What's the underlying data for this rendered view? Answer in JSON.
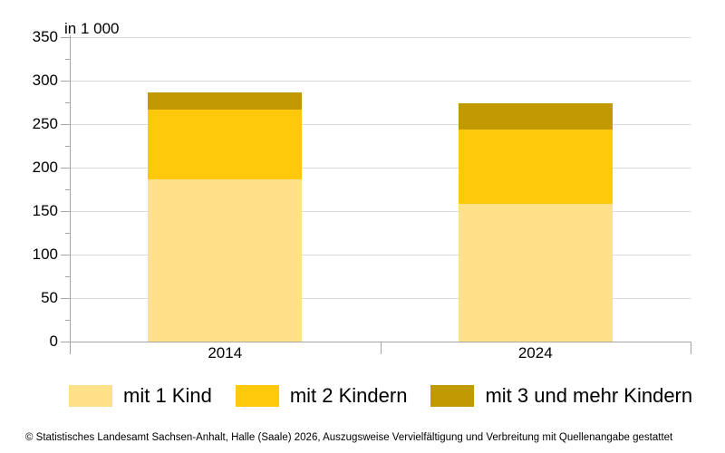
{
  "chart_data": {
    "type": "bar",
    "stacked": true,
    "unit_label": "in 1 000",
    "categories": [
      "2014",
      "2024"
    ],
    "series": [
      {
        "name": "mit 1 Kind",
        "color": "#ffe18a",
        "values": [
          186,
          158
        ]
      },
      {
        "name": "mit 2 Kindern",
        "color": "#ffc90b",
        "values": [
          81,
          86
        ]
      },
      {
        "name": "mit 3 und mehr Kindern",
        "color": "#c19a03",
        "values": [
          19,
          30
        ]
      }
    ],
    "totals": [
      286,
      274
    ],
    "ylim": [
      0,
      350
    ],
    "ytick_major": 50,
    "ytick_minor": 25,
    "grid": true,
    "legend_position": "bottom"
  },
  "colors": {
    "grid": "#d9d9d9",
    "axis": "#a6a6a6",
    "text": "#000000",
    "background": "#ffffff"
  },
  "footer": {
    "text": "© Statistisches Landesamt Sachsen-Anhalt, Halle (Saale) 2026, Auszugsweise Vervielfältigung und Verbreitung mit Quellenangabe gestattet"
  }
}
